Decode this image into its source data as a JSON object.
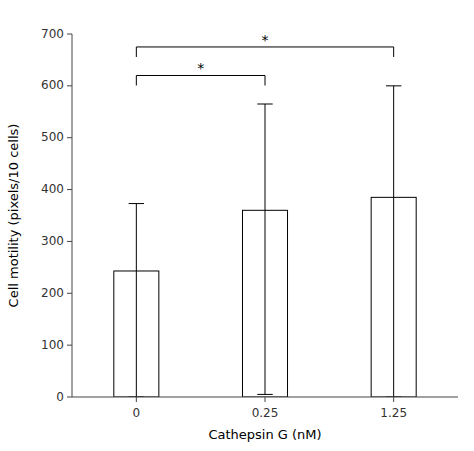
{
  "chart_data": {
    "type": "bar",
    "categories": [
      "0",
      "0.25",
      "1.25"
    ],
    "values": [
      243,
      360,
      385
    ],
    "error_upper": [
      130,
      205,
      215
    ],
    "error_lower": [
      243,
      355,
      385
    ],
    "color": "#ffffff",
    "xlabel": "Cathepsin G (nM)",
    "ylabel": "Cell motility (pixels/10 cells)",
    "ylim": [
      0,
      700
    ],
    "yticks": [
      0,
      100,
      200,
      300,
      400,
      500,
      600,
      700
    ],
    "grid": false,
    "significance": [
      {
        "from": "0",
        "to": "0.25",
        "y": 620,
        "label": "*"
      },
      {
        "from": "0",
        "to": "1.25",
        "y": 675,
        "label": "*"
      }
    ]
  }
}
